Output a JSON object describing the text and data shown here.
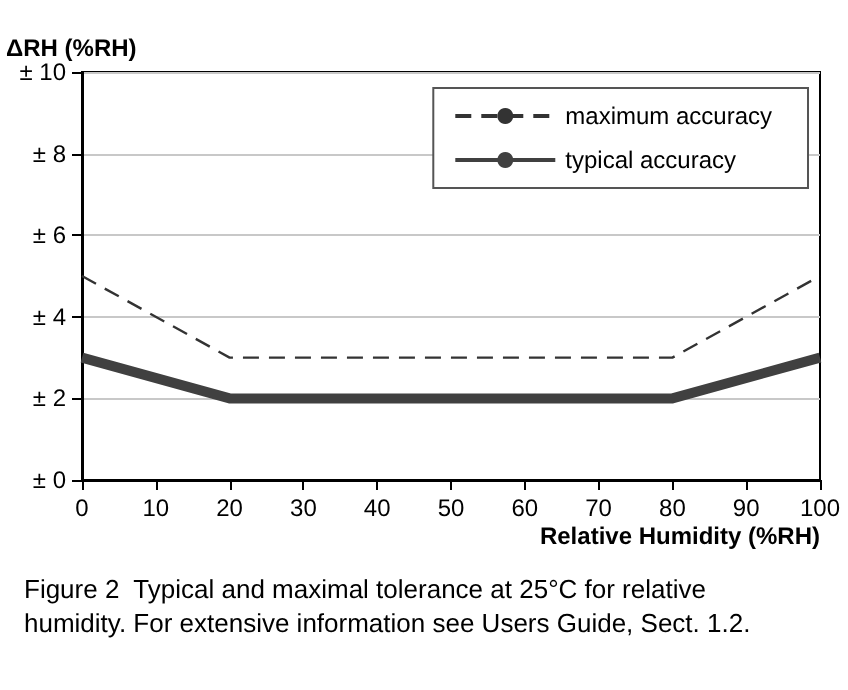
{
  "chart_data": {
    "type": "line",
    "ylabel": "ΔRH (%RH)",
    "xlabel": "Relative Humidity (%RH)",
    "annotations": [
      "Figure 2  Typical and maximal tolerance at 25°C for relative humidity. For extensive information see Users Guide, Sect. 1.2."
    ],
    "series": [
      {
        "name": "maximum accuracy",
        "color": "#333333",
        "line_style": "dashed",
        "x": [
          0,
          20,
          80,
          100
        ],
        "values": [
          5,
          3,
          3,
          5
        ]
      },
      {
        "name": "typical accuracy",
        "color": "#404040",
        "line_style": "solid",
        "x": [
          0,
          20,
          80,
          100
        ],
        "values": [
          3,
          2,
          2,
          3
        ]
      }
    ],
    "xlim": [
      0,
      100
    ],
    "xticks": [
      0,
      10,
      20,
      30,
      40,
      50,
      60,
      70,
      80,
      90,
      100
    ],
    "ylim": [
      0,
      10
    ],
    "yticks": [
      {
        "value": 0,
        "label": "± 0"
      },
      {
        "value": 2,
        "label": "± 2"
      },
      {
        "value": 4,
        "label": "± 4"
      },
      {
        "value": 6,
        "label": "± 6"
      },
      {
        "value": 8,
        "label": "± 8"
      },
      {
        "value": 10,
        "label": "± 10"
      }
    ],
    "grid": "y",
    "legend": "top right",
    "marker": "none"
  }
}
